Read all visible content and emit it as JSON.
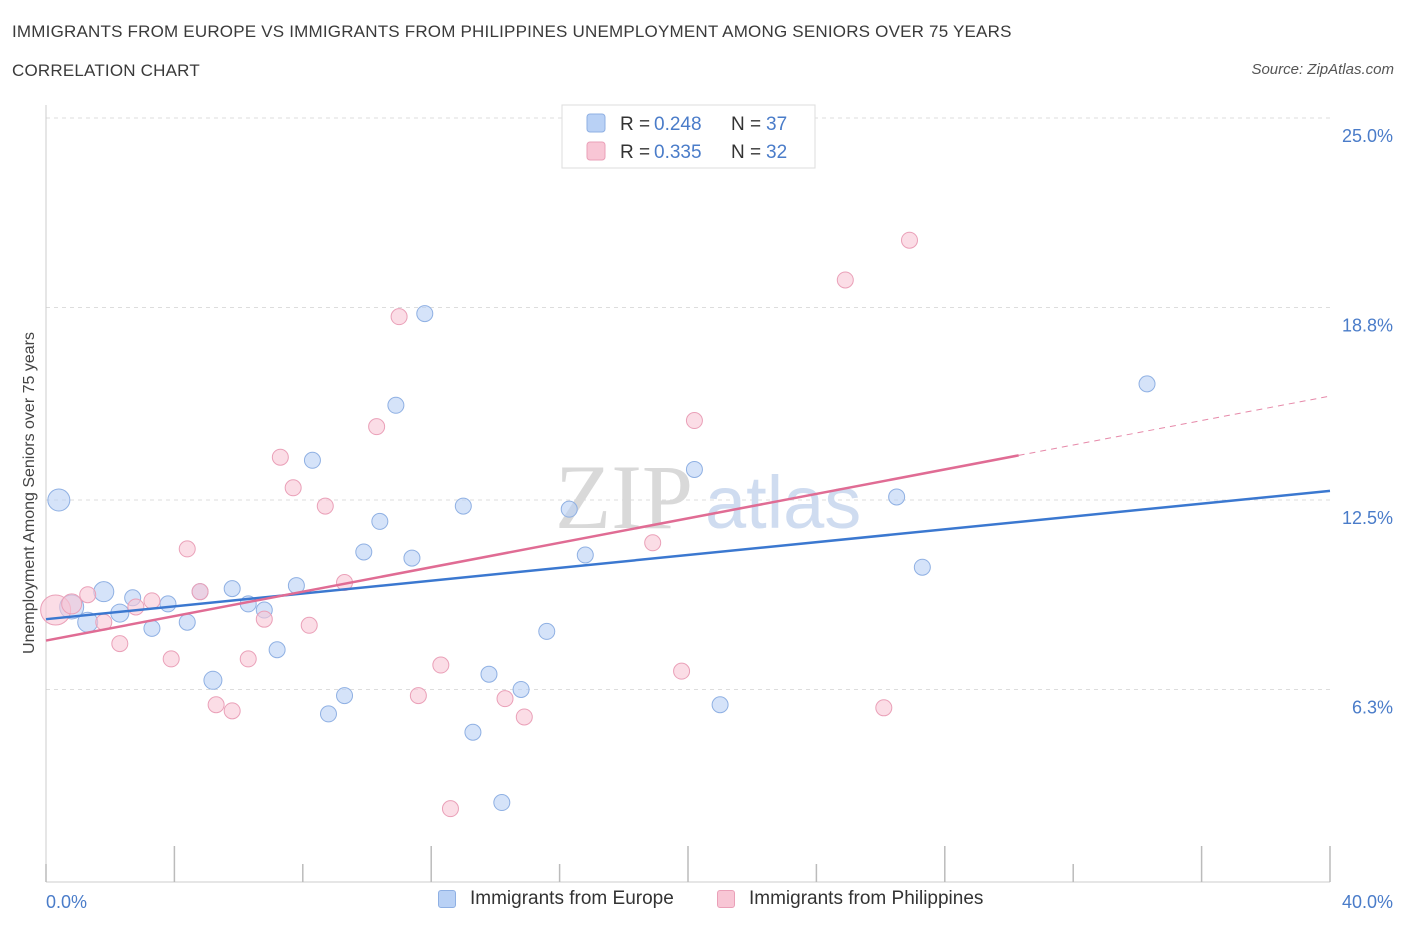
{
  "title": "IMMIGRANTS FROM EUROPE VS IMMIGRANTS FROM PHILIPPINES UNEMPLOYMENT AMONG SENIORS OVER 75 YEARS",
  "subtitle": "CORRELATION CHART",
  "source": "Source: ZipAtlas.com",
  "watermark": {
    "zip": "ZIP",
    "atlas": "atlas"
  },
  "colors": {
    "europe_fill": "#b9d1f5",
    "europe_stroke": "#8fb0e3",
    "europe_line": "#3b78d0",
    "phil_fill": "#f8c6d5",
    "phil_stroke": "#eaa0b8",
    "phil_line": "#e06c94",
    "axis_text": "#4a7cc9",
    "grid": "#dddddd"
  },
  "legend_top": {
    "europe": {
      "r_label": "R = ",
      "r_value": "0.248",
      "n_label": "N = ",
      "n_value": "37"
    },
    "phil": {
      "r_label": "R = ",
      "r_value": "0.335",
      "n_label": "N = ",
      "n_value": "32"
    }
  },
  "legend_bottom": {
    "europe": "Immigrants from Europe",
    "phil": "Immigrants from Philippines"
  },
  "chart_data": {
    "type": "scatter",
    "ylabel": "Unemployment Among Seniors over 75 years",
    "xlim": [
      0,
      40
    ],
    "ylim": [
      0,
      25
    ],
    "x_tick_labels": {
      "left": "0.0%",
      "right": "40.0%"
    },
    "y_ticks": [
      {
        "value": 6.3,
        "label": "6.3%"
      },
      {
        "value": 12.5,
        "label": "12.5%"
      },
      {
        "value": 18.8,
        "label": "18.8%"
      },
      {
        "value": 25.0,
        "label": "25.0%"
      }
    ],
    "series": [
      {
        "name": "Immigrants from Europe",
        "R": 0.248,
        "N": 37,
        "trend": {
          "x0": 0,
          "y0": 8.6,
          "x1": 40,
          "y1": 12.8
        },
        "points": [
          {
            "x": 0.4,
            "y": 12.5,
            "s": 11
          },
          {
            "x": 0.8,
            "y": 9.0,
            "s": 12
          },
          {
            "x": 1.3,
            "y": 8.5,
            "s": 10
          },
          {
            "x": 1.8,
            "y": 9.5,
            "s": 10
          },
          {
            "x": 2.3,
            "y": 8.8,
            "s": 9
          },
          {
            "x": 2.7,
            "y": 9.3,
            "s": 8
          },
          {
            "x": 3.3,
            "y": 8.3,
            "s": 8
          },
          {
            "x": 3.8,
            "y": 9.1,
            "s": 8
          },
          {
            "x": 4.4,
            "y": 8.5,
            "s": 8
          },
          {
            "x": 4.8,
            "y": 9.5,
            "s": 8
          },
          {
            "x": 5.2,
            "y": 6.6,
            "s": 9
          },
          {
            "x": 5.8,
            "y": 9.6,
            "s": 8
          },
          {
            "x": 6.3,
            "y": 9.1,
            "s": 8
          },
          {
            "x": 6.8,
            "y": 8.9,
            "s": 8
          },
          {
            "x": 7.2,
            "y": 7.6,
            "s": 8
          },
          {
            "x": 7.8,
            "y": 9.7,
            "s": 8
          },
          {
            "x": 8.3,
            "y": 13.8,
            "s": 8
          },
          {
            "x": 8.8,
            "y": 5.5,
            "s": 8
          },
          {
            "x": 9.3,
            "y": 6.1,
            "s": 8
          },
          {
            "x": 9.9,
            "y": 10.8,
            "s": 8
          },
          {
            "x": 10.4,
            "y": 11.8,
            "s": 8
          },
          {
            "x": 10.9,
            "y": 15.6,
            "s": 8
          },
          {
            "x": 11.4,
            "y": 10.6,
            "s": 8
          },
          {
            "x": 11.8,
            "y": 18.6,
            "s": 8
          },
          {
            "x": 13.0,
            "y": 12.3,
            "s": 8
          },
          {
            "x": 13.3,
            "y": 4.9,
            "s": 8
          },
          {
            "x": 13.8,
            "y": 6.8,
            "s": 8
          },
          {
            "x": 14.2,
            "y": 2.6,
            "s": 8
          },
          {
            "x": 14.8,
            "y": 6.3,
            "s": 8
          },
          {
            "x": 15.6,
            "y": 8.2,
            "s": 8
          },
          {
            "x": 16.3,
            "y": 12.2,
            "s": 8
          },
          {
            "x": 16.8,
            "y": 10.7,
            "s": 8
          },
          {
            "x": 20.2,
            "y": 13.5,
            "s": 8
          },
          {
            "x": 21.0,
            "y": 5.8,
            "s": 8
          },
          {
            "x": 26.5,
            "y": 12.6,
            "s": 8
          },
          {
            "x": 27.3,
            "y": 10.3,
            "s": 8
          },
          {
            "x": 34.3,
            "y": 16.3,
            "s": 8
          }
        ]
      },
      {
        "name": "Immigrants from Philippines",
        "R": 0.335,
        "N": 32,
        "trend": {
          "x0": 0,
          "y0": 7.9,
          "x1": 40,
          "y1": 15.9,
          "solid_until_x": 30.3
        },
        "points": [
          {
            "x": 0.3,
            "y": 8.9,
            "s": 15
          },
          {
            "x": 0.8,
            "y": 9.1,
            "s": 10
          },
          {
            "x": 1.3,
            "y": 9.4,
            "s": 8
          },
          {
            "x": 1.8,
            "y": 8.5,
            "s": 8
          },
          {
            "x": 2.3,
            "y": 7.8,
            "s": 8
          },
          {
            "x": 2.8,
            "y": 9.0,
            "s": 8
          },
          {
            "x": 3.3,
            "y": 9.2,
            "s": 8
          },
          {
            "x": 3.9,
            "y": 7.3,
            "s": 8
          },
          {
            "x": 4.4,
            "y": 10.9,
            "s": 8
          },
          {
            "x": 4.8,
            "y": 9.5,
            "s": 8
          },
          {
            "x": 5.3,
            "y": 5.8,
            "s": 8
          },
          {
            "x": 5.8,
            "y": 5.6,
            "s": 8
          },
          {
            "x": 6.3,
            "y": 7.3,
            "s": 8
          },
          {
            "x": 6.8,
            "y": 8.6,
            "s": 8
          },
          {
            "x": 7.3,
            "y": 13.9,
            "s": 8
          },
          {
            "x": 7.7,
            "y": 12.9,
            "s": 8
          },
          {
            "x": 8.2,
            "y": 8.4,
            "s": 8
          },
          {
            "x": 8.7,
            "y": 12.3,
            "s": 8
          },
          {
            "x": 9.3,
            "y": 9.8,
            "s": 8
          },
          {
            "x": 10.3,
            "y": 14.9,
            "s": 8
          },
          {
            "x": 11.0,
            "y": 18.5,
            "s": 8
          },
          {
            "x": 11.6,
            "y": 6.1,
            "s": 8
          },
          {
            "x": 12.3,
            "y": 7.1,
            "s": 8
          },
          {
            "x": 12.6,
            "y": 2.4,
            "s": 8
          },
          {
            "x": 14.3,
            "y": 6.0,
            "s": 8
          },
          {
            "x": 14.9,
            "y": 5.4,
            "s": 8
          },
          {
            "x": 18.9,
            "y": 11.1,
            "s": 8
          },
          {
            "x": 19.8,
            "y": 6.9,
            "s": 8
          },
          {
            "x": 20.2,
            "y": 15.1,
            "s": 8
          },
          {
            "x": 24.9,
            "y": 19.7,
            "s": 8
          },
          {
            "x": 26.1,
            "y": 5.7,
            "s": 8
          },
          {
            "x": 26.9,
            "y": 21.0,
            "s": 8
          }
        ]
      }
    ]
  }
}
